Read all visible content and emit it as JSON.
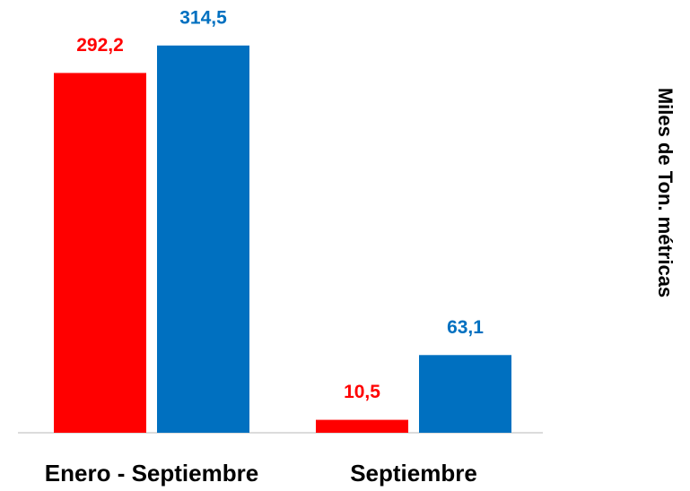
{
  "chart_data": {
    "type": "bar",
    "y_label": "Miles de Ton. métricas",
    "categories": [
      "Enero - Septiembre",
      "Septiembre"
    ],
    "series": [
      {
        "color": "#ff0000",
        "values": [
          292.2,
          10.5
        ],
        "value_labels": [
          "292,2",
          "10,5"
        ]
      },
      {
        "color": "#0070c0",
        "values": [
          314.5,
          63.1
        ],
        "value_labels": [
          "314,5",
          "63,1"
        ]
      }
    ],
    "ylim": [
      0,
      350
    ]
  }
}
